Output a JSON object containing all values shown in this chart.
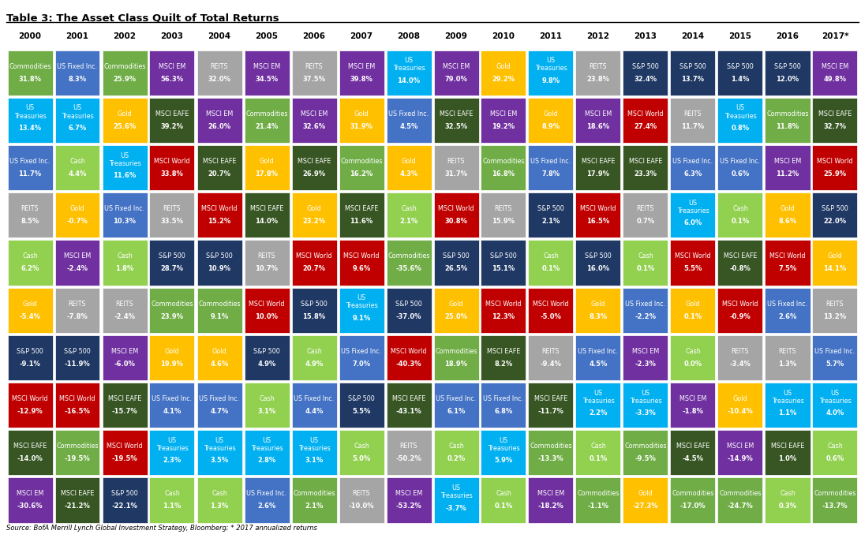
{
  "title": "Table 3: The Asset Class Quilt of Total Returns",
  "years": [
    "2000",
    "2001",
    "2002",
    "2003",
    "2004",
    "2005",
    "2006",
    "2007",
    "2008",
    "2009",
    "2010",
    "2011",
    "2012",
    "2013",
    "2014",
    "2015",
    "2016",
    "2017*"
  ],
  "footnote": "Source: BofA Merrill Lynch Global Investment Strategy, Bloomberg; * 2017 annualized returns",
  "colors": {
    "Commodities": "#70ad47",
    "US Fixed Inc.": "#4472c4",
    "Gold": "#ffc000",
    "MSCI EM": "#7030a0",
    "REITS": "#a5a5a5",
    "MSCI EAFE": "#375623",
    "MSCI World": "#c00000",
    "S&P 500": "#1f3864",
    "Cash": "#92d050",
    "US Treasuries": "#00b0f0"
  },
  "table": [
    [
      {
        "asset": "Commodities",
        "ret": "31.8%"
      },
      {
        "asset": "US Fixed Inc.",
        "ret": "8.3%"
      },
      {
        "asset": "Commodities",
        "ret": "25.9%"
      },
      {
        "asset": "MSCI EM",
        "ret": "56.3%"
      },
      {
        "asset": "REITS",
        "ret": "32.0%"
      },
      {
        "asset": "MSCI EM",
        "ret": "34.5%"
      },
      {
        "asset": "REITS",
        "ret": "37.5%"
      },
      {
        "asset": "MSCI EM",
        "ret": "39.8%"
      },
      {
        "asset": "US Treasuries",
        "ret": "14.0%"
      },
      {
        "asset": "MSCI EM",
        "ret": "79.0%"
      },
      {
        "asset": "Gold",
        "ret": "29.2%"
      },
      {
        "asset": "US Treasuries",
        "ret": "9.8%"
      },
      {
        "asset": "REITS",
        "ret": "23.8%"
      },
      {
        "asset": "S&P 500",
        "ret": "32.4%"
      },
      {
        "asset": "S&P 500",
        "ret": "13.7%"
      },
      {
        "asset": "S&P 500",
        "ret": "1.4%"
      },
      {
        "asset": "S&P 500",
        "ret": "12.0%"
      },
      {
        "asset": "MSCI EM",
        "ret": "49.8%"
      }
    ],
    [
      {
        "asset": "US Treasuries",
        "ret": "13.4%"
      },
      {
        "asset": "US Treasuries",
        "ret": "6.7%"
      },
      {
        "asset": "Gold",
        "ret": "25.6%"
      },
      {
        "asset": "MSCI EAFE",
        "ret": "39.2%"
      },
      {
        "asset": "MSCI EM",
        "ret": "26.0%"
      },
      {
        "asset": "Commodities",
        "ret": "21.4%"
      },
      {
        "asset": "MSCI EM",
        "ret": "32.6%"
      },
      {
        "asset": "Gold",
        "ret": "31.9%"
      },
      {
        "asset": "US Fixed Inc.",
        "ret": "4.5%"
      },
      {
        "asset": "MSCI EAFE",
        "ret": "32.5%"
      },
      {
        "asset": "MSCI EM",
        "ret": "19.2%"
      },
      {
        "asset": "Gold",
        "ret": "8.9%"
      },
      {
        "asset": "MSCI EM",
        "ret": "18.6%"
      },
      {
        "asset": "MSCI World",
        "ret": "27.4%"
      },
      {
        "asset": "REITS",
        "ret": "11.7%"
      },
      {
        "asset": "US Treasuries",
        "ret": "0.8%"
      },
      {
        "asset": "Commodities",
        "ret": "11.8%"
      },
      {
        "asset": "MSCI EAFE",
        "ret": "32.7%"
      }
    ],
    [
      {
        "asset": "US Fixed Inc.",
        "ret": "11.7%"
      },
      {
        "asset": "Cash",
        "ret": "4.4%"
      },
      {
        "asset": "US Treasuries",
        "ret": "11.6%"
      },
      {
        "asset": "MSCI World",
        "ret": "33.8%"
      },
      {
        "asset": "MSCI EAFE",
        "ret": "20.7%"
      },
      {
        "asset": "Gold",
        "ret": "17.8%"
      },
      {
        "asset": "MSCI EAFE",
        "ret": "26.9%"
      },
      {
        "asset": "Commodities",
        "ret": "16.2%"
      },
      {
        "asset": "Gold",
        "ret": "4.3%"
      },
      {
        "asset": "REITS",
        "ret": "31.7%"
      },
      {
        "asset": "Commodities",
        "ret": "16.8%"
      },
      {
        "asset": "US Fixed Inc.",
        "ret": "7.8%"
      },
      {
        "asset": "MSCI EAFE",
        "ret": "17.9%"
      },
      {
        "asset": "MSCI EAFE",
        "ret": "23.3%"
      },
      {
        "asset": "US Fixed Inc.",
        "ret": "6.3%"
      },
      {
        "asset": "US Fixed Inc.",
        "ret": "0.6%"
      },
      {
        "asset": "MSCI EM",
        "ret": "11.2%"
      },
      {
        "asset": "MSCI World",
        "ret": "25.9%"
      }
    ],
    [
      {
        "asset": "REITS",
        "ret": "8.5%"
      },
      {
        "asset": "Gold",
        "ret": "-0.7%"
      },
      {
        "asset": "US Fixed Inc.",
        "ret": "10.3%"
      },
      {
        "asset": "REITS",
        "ret": "33.5%"
      },
      {
        "asset": "MSCI World",
        "ret": "15.2%"
      },
      {
        "asset": "MSCI EAFE",
        "ret": "14.0%"
      },
      {
        "asset": "Gold",
        "ret": "23.2%"
      },
      {
        "asset": "MSCI EAFE",
        "ret": "11.6%"
      },
      {
        "asset": "Cash",
        "ret": "2.1%"
      },
      {
        "asset": "MSCI World",
        "ret": "30.8%"
      },
      {
        "asset": "REITS",
        "ret": "15.9%"
      },
      {
        "asset": "S&P 500",
        "ret": "2.1%"
      },
      {
        "asset": "MSCI World",
        "ret": "16.5%"
      },
      {
        "asset": "REITS",
        "ret": "0.7%"
      },
      {
        "asset": "US Treasuries",
        "ret": "6.0%"
      },
      {
        "asset": "Cash",
        "ret": "0.1%"
      },
      {
        "asset": "Gold",
        "ret": "8.6%"
      },
      {
        "asset": "S&P 500",
        "ret": "22.0%"
      }
    ],
    [
      {
        "asset": "Cash",
        "ret": "6.2%"
      },
      {
        "asset": "MSCI EM",
        "ret": "-2.4%"
      },
      {
        "asset": "Cash",
        "ret": "1.8%"
      },
      {
        "asset": "S&P 500",
        "ret": "28.7%"
      },
      {
        "asset": "S&P 500",
        "ret": "10.9%"
      },
      {
        "asset": "REITS",
        "ret": "10.7%"
      },
      {
        "asset": "MSCI World",
        "ret": "20.7%"
      },
      {
        "asset": "MSCI World",
        "ret": "9.6%"
      },
      {
        "asset": "Commodities",
        "ret": "-35.6%"
      },
      {
        "asset": "S&P 500",
        "ret": "26.5%"
      },
      {
        "asset": "S&P 500",
        "ret": "15.1%"
      },
      {
        "asset": "Cash",
        "ret": "0.1%"
      },
      {
        "asset": "S&P 500",
        "ret": "16.0%"
      },
      {
        "asset": "Cash",
        "ret": "0.1%"
      },
      {
        "asset": "MSCI World",
        "ret": "5.5%"
      },
      {
        "asset": "MSCI EAFE",
        "ret": "-0.8%"
      },
      {
        "asset": "MSCI World",
        "ret": "7.5%"
      },
      {
        "asset": "Gold",
        "ret": "14.1%"
      }
    ],
    [
      {
        "asset": "Gold",
        "ret": "-5.4%"
      },
      {
        "asset": "REITS",
        "ret": "-7.8%"
      },
      {
        "asset": "REITS",
        "ret": "-2.4%"
      },
      {
        "asset": "Commodities",
        "ret": "23.9%"
      },
      {
        "asset": "Commodities",
        "ret": "9.1%"
      },
      {
        "asset": "MSCI World",
        "ret": "10.0%"
      },
      {
        "asset": "S&P 500",
        "ret": "15.8%"
      },
      {
        "asset": "US Treasuries",
        "ret": "9.1%"
      },
      {
        "asset": "S&P 500",
        "ret": "-37.0%"
      },
      {
        "asset": "Gold",
        "ret": "25.0%"
      },
      {
        "asset": "MSCI World",
        "ret": "12.3%"
      },
      {
        "asset": "MSCI World",
        "ret": "-5.0%"
      },
      {
        "asset": "Gold",
        "ret": "8.3%"
      },
      {
        "asset": "US Fixed Inc.",
        "ret": "-2.2%"
      },
      {
        "asset": "Gold",
        "ret": "0.1%"
      },
      {
        "asset": "MSCI World",
        "ret": "-0.9%"
      },
      {
        "asset": "US Fixed Inc.",
        "ret": "2.6%"
      },
      {
        "asset": "REITS",
        "ret": "13.2%"
      }
    ],
    [
      {
        "asset": "S&P 500",
        "ret": "-9.1%"
      },
      {
        "asset": "S&P 500",
        "ret": "-11.9%"
      },
      {
        "asset": "MSCI EM",
        "ret": "-6.0%"
      },
      {
        "asset": "Gold",
        "ret": "19.9%"
      },
      {
        "asset": "Gold",
        "ret": "4.6%"
      },
      {
        "asset": "S&P 500",
        "ret": "4.9%"
      },
      {
        "asset": "Cash",
        "ret": "4.9%"
      },
      {
        "asset": "US Fixed Inc.",
        "ret": "7.0%"
      },
      {
        "asset": "MSCI World",
        "ret": "-40.3%"
      },
      {
        "asset": "Commodities",
        "ret": "18.9%"
      },
      {
        "asset": "MSCI EAFE",
        "ret": "8.2%"
      },
      {
        "asset": "REITS",
        "ret": "-9.4%"
      },
      {
        "asset": "US Fixed Inc.",
        "ret": "4.5%"
      },
      {
        "asset": "MSCI EM",
        "ret": "-2.3%"
      },
      {
        "asset": "Cash",
        "ret": "0.0%"
      },
      {
        "asset": "REITS",
        "ret": "-3.4%"
      },
      {
        "asset": "REITS",
        "ret": "1.3%"
      },
      {
        "asset": "US Fixed Inc.",
        "ret": "5.7%"
      }
    ],
    [
      {
        "asset": "MSCI World",
        "ret": "-12.9%"
      },
      {
        "asset": "MSCI World",
        "ret": "-16.5%"
      },
      {
        "asset": "MSCI EAFE",
        "ret": "-15.7%"
      },
      {
        "asset": "US Fixed Inc.",
        "ret": "4.1%"
      },
      {
        "asset": "US Fixed Inc.",
        "ret": "4.7%"
      },
      {
        "asset": "Cash",
        "ret": "3.1%"
      },
      {
        "asset": "US Fixed Inc.",
        "ret": "4.4%"
      },
      {
        "asset": "S&P 500",
        "ret": "5.5%"
      },
      {
        "asset": "MSCI EAFE",
        "ret": "-43.1%"
      },
      {
        "asset": "US Fixed Inc.",
        "ret": "6.1%"
      },
      {
        "asset": "US Fixed Inc.",
        "ret": "6.8%"
      },
      {
        "asset": "MSCI EAFE",
        "ret": "-11.7%"
      },
      {
        "asset": "US Treasuries",
        "ret": "2.2%"
      },
      {
        "asset": "US Treasuries",
        "ret": "-3.3%"
      },
      {
        "asset": "MSCI EM",
        "ret": "-1.8%"
      },
      {
        "asset": "Gold",
        "ret": "-10.4%"
      },
      {
        "asset": "US Treasuries",
        "ret": "1.1%"
      },
      {
        "asset": "US Treasuries",
        "ret": "4.0%"
      }
    ],
    [
      {
        "asset": "MSCI EAFE",
        "ret": "-14.0%"
      },
      {
        "asset": "Commodities",
        "ret": "-19.5%"
      },
      {
        "asset": "MSCI World",
        "ret": "-19.5%"
      },
      {
        "asset": "US Treasuries",
        "ret": "2.3%"
      },
      {
        "asset": "US Treasuries",
        "ret": "3.5%"
      },
      {
        "asset": "US Treasuries",
        "ret": "2.8%"
      },
      {
        "asset": "US Treasuries",
        "ret": "3.1%"
      },
      {
        "asset": "Cash",
        "ret": "5.0%"
      },
      {
        "asset": "REITS",
        "ret": "-50.2%"
      },
      {
        "asset": "Cash",
        "ret": "0.2%"
      },
      {
        "asset": "US Treasuries",
        "ret": "5.9%"
      },
      {
        "asset": "Commodities",
        "ret": "-13.3%"
      },
      {
        "asset": "Cash",
        "ret": "0.1%"
      },
      {
        "asset": "Commodities",
        "ret": "-9.5%"
      },
      {
        "asset": "MSCI EAFE",
        "ret": "-4.5%"
      },
      {
        "asset": "MSCI EM",
        "ret": "-14.9%"
      },
      {
        "asset": "MSCI EAFE",
        "ret": "1.0%"
      },
      {
        "asset": "Cash",
        "ret": "0.6%"
      }
    ],
    [
      {
        "asset": "MSCI EM",
        "ret": "-30.6%"
      },
      {
        "asset": "MSCI EAFE",
        "ret": "-21.2%"
      },
      {
        "asset": "S&P 500",
        "ret": "-22.1%"
      },
      {
        "asset": "Cash",
        "ret": "1.1%"
      },
      {
        "asset": "Cash",
        "ret": "1.3%"
      },
      {
        "asset": "US Fixed Inc.",
        "ret": "2.6%"
      },
      {
        "asset": "Commodities",
        "ret": "2.1%"
      },
      {
        "asset": "REITS",
        "ret": "-10.0%"
      },
      {
        "asset": "MSCI EM",
        "ret": "-53.2%"
      },
      {
        "asset": "US Treasuries",
        "ret": "-3.7%"
      },
      {
        "asset": "Cash",
        "ret": "0.1%"
      },
      {
        "asset": "MSCI EM",
        "ret": "-18.2%"
      },
      {
        "asset": "Commodities",
        "ret": "-1.1%"
      },
      {
        "asset": "Gold",
        "ret": "-27.3%"
      },
      {
        "asset": "Commodities",
        "ret": "-17.0%"
      },
      {
        "asset": "Commodities",
        "ret": "-24.7%"
      },
      {
        "asset": "Cash",
        "ret": "0.3%"
      },
      {
        "asset": "Commodities",
        "ret": "-13.7%"
      }
    ]
  ]
}
